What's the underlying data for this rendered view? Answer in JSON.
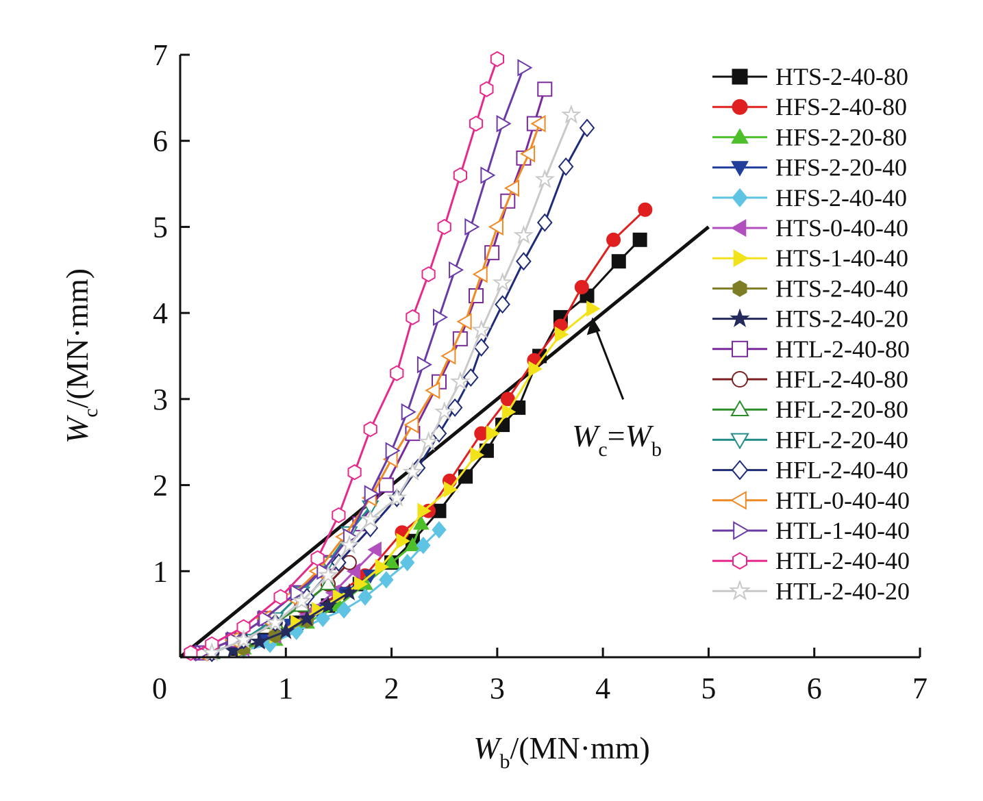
{
  "chart_data": {
    "type": "line",
    "title": "",
    "xlim": [
      0,
      7
    ],
    "ylim": [
      0,
      7
    ],
    "x_ticks": [
      "0",
      "1",
      "2",
      "3",
      "4",
      "5",
      "6",
      "7"
    ],
    "y_ticks": [
      "1",
      "2",
      "3",
      "4",
      "5",
      "6",
      "7"
    ],
    "xlabel": {
      "main": "W",
      "sub": "b",
      "unit": "/(MN·mm)"
    },
    "ylabel": {
      "main": "W",
      "sub": "c",
      "unit": "/(MN·mm)"
    },
    "grid": false,
    "legend_position": "right",
    "reference_line": {
      "points": [
        [
          0,
          0
        ],
        [
          5,
          5
        ]
      ],
      "color": "#111111",
      "label": {
        "main1": "W",
        "sub1": "c",
        "eq": "=",
        "main2": "W",
        "sub2": "b"
      },
      "arrow_target": [
        3.9,
        3.95
      ]
    },
    "series": [
      {
        "name": "HTS-2-40-80",
        "color": "#111111",
        "marker": "square",
        "filled": true,
        "points": [
          [
            0.55,
            0.1
          ],
          [
            0.8,
            0.2
          ],
          [
            1.1,
            0.4
          ],
          [
            1.4,
            0.6
          ],
          [
            1.7,
            0.85
          ],
          [
            2.0,
            1.1
          ],
          [
            2.2,
            1.35
          ],
          [
            2.45,
            1.7
          ],
          [
            2.7,
            2.1
          ],
          [
            2.9,
            2.4
          ],
          [
            3.05,
            2.7
          ],
          [
            3.2,
            2.9
          ],
          [
            3.4,
            3.5
          ],
          [
            3.6,
            3.95
          ],
          [
            3.85,
            4.2
          ],
          [
            4.15,
            4.6
          ],
          [
            4.35,
            4.85
          ]
        ]
      },
      {
        "name": "HFS-2-40-80",
        "color": "#e02020",
        "marker": "circle",
        "filled": true,
        "points": [
          [
            0.6,
            0.1
          ],
          [
            0.9,
            0.25
          ],
          [
            1.2,
            0.45
          ],
          [
            1.5,
            0.75
          ],
          [
            1.75,
            0.95
          ],
          [
            2.1,
            1.45
          ],
          [
            2.35,
            1.7
          ],
          [
            2.55,
            2.05
          ],
          [
            2.85,
            2.6
          ],
          [
            3.1,
            3.0
          ],
          [
            3.35,
            3.45
          ],
          [
            3.6,
            3.85
          ],
          [
            3.8,
            4.3
          ],
          [
            4.1,
            4.85
          ],
          [
            4.4,
            5.2
          ]
        ]
      },
      {
        "name": "HFS-2-20-80",
        "color": "#4cbf2a",
        "marker": "triangle-up",
        "filled": true,
        "points": [
          [
            0.6,
            0.1
          ],
          [
            0.9,
            0.2
          ],
          [
            1.2,
            0.4
          ],
          [
            1.5,
            0.6
          ],
          [
            1.75,
            0.85
          ],
          [
            2.0,
            1.1
          ],
          [
            2.2,
            1.3
          ],
          [
            2.28,
            1.55
          ]
        ]
      },
      {
        "name": "HFS-2-20-40",
        "color": "#1f3f9a",
        "marker": "triangle-down",
        "filled": true,
        "points": [
          [
            0.55,
            0.08
          ],
          [
            0.8,
            0.2
          ],
          [
            1.05,
            0.38
          ],
          [
            1.3,
            0.55
          ],
          [
            1.55,
            0.75
          ],
          [
            1.8,
            0.95
          ]
        ]
      },
      {
        "name": "HFS-2-40-40",
        "color": "#5fc3e4",
        "marker": "diamond",
        "filled": true,
        "points": [
          [
            0.6,
            0.08
          ],
          [
            0.85,
            0.15
          ],
          [
            1.1,
            0.3
          ],
          [
            1.35,
            0.45
          ],
          [
            1.55,
            0.55
          ],
          [
            1.75,
            0.7
          ],
          [
            1.95,
            0.9
          ],
          [
            2.15,
            1.1
          ],
          [
            2.3,
            1.3
          ],
          [
            2.45,
            1.48
          ]
        ]
      },
      {
        "name": "HTS-0-40-40",
        "color": "#b24fbf",
        "marker": "triangle-left",
        "filled": true,
        "points": [
          [
            0.6,
            0.1
          ],
          [
            0.9,
            0.25
          ],
          [
            1.2,
            0.5
          ],
          [
            1.45,
            0.75
          ],
          [
            1.65,
            1.0
          ],
          [
            1.85,
            1.25
          ]
        ]
      },
      {
        "name": "HTS-1-40-40",
        "color": "#f2e21a",
        "marker": "triangle-right",
        "filled": true,
        "points": [
          [
            0.6,
            0.1
          ],
          [
            0.9,
            0.25
          ],
          [
            1.1,
            0.4
          ],
          [
            1.3,
            0.55
          ],
          [
            1.5,
            0.7
          ],
          [
            1.7,
            0.85
          ],
          [
            1.9,
            1.05
          ],
          [
            2.1,
            1.35
          ],
          [
            2.3,
            1.7
          ],
          [
            2.55,
            1.95
          ],
          [
            2.8,
            2.35
          ],
          [
            2.95,
            2.6
          ],
          [
            3.1,
            2.85
          ],
          [
            3.35,
            3.35
          ],
          [
            3.6,
            3.75
          ],
          [
            3.9,
            4.05
          ]
        ]
      },
      {
        "name": "HTS-2-40-40",
        "color": "#7d7d26",
        "marker": "hexagon",
        "filled": true,
        "points": [
          [
            0.6,
            0.1
          ],
          [
            0.9,
            0.25
          ],
          [
            1.2,
            0.42
          ]
        ]
      },
      {
        "name": "HTS-2-40-20",
        "color": "#252a5c",
        "marker": "star",
        "filled": true,
        "points": [
          [
            0.5,
            0.08
          ],
          [
            0.75,
            0.18
          ],
          [
            1.0,
            0.3
          ],
          [
            1.2,
            0.45
          ],
          [
            1.4,
            0.6
          ],
          [
            1.6,
            0.75
          ]
        ]
      },
      {
        "name": "HTL-2-40-80",
        "color": "#7a2a9a",
        "marker": "square",
        "filled": false,
        "points": [
          [
            0.2,
            0.05
          ],
          [
            0.5,
            0.2
          ],
          [
            0.8,
            0.45
          ],
          [
            1.1,
            0.75
          ],
          [
            1.4,
            1.1
          ],
          [
            1.7,
            1.55
          ],
          [
            1.95,
            2.0
          ],
          [
            2.2,
            2.6
          ],
          [
            2.45,
            3.2
          ],
          [
            2.65,
            3.7
          ],
          [
            2.8,
            4.2
          ],
          [
            2.95,
            4.7
          ],
          [
            3.1,
            5.3
          ],
          [
            3.25,
            5.8
          ],
          [
            3.35,
            6.2
          ],
          [
            3.45,
            6.6
          ]
        ]
      },
      {
        "name": "HFL-2-40-80",
        "color": "#7a2020",
        "marker": "circle",
        "filled": false,
        "points": [
          [
            0.3,
            0.05
          ],
          [
            0.6,
            0.2
          ],
          [
            0.9,
            0.4
          ],
          [
            1.15,
            0.6
          ],
          [
            1.4,
            0.85
          ],
          [
            1.6,
            1.1
          ]
        ]
      },
      {
        "name": "HFL-2-20-80",
        "color": "#2c8c2c",
        "marker": "triangle-up",
        "filled": false,
        "points": [
          [
            0.3,
            0.05
          ],
          [
            0.6,
            0.2
          ],
          [
            0.9,
            0.4
          ],
          [
            1.15,
            0.6
          ],
          [
            1.4,
            0.85
          ]
        ]
      },
      {
        "name": "HFL-2-20-40",
        "color": "#258c8c",
        "marker": "triangle-down",
        "filled": false,
        "points": [
          [
            0.3,
            0.05
          ],
          [
            0.6,
            0.2
          ],
          [
            0.9,
            0.45
          ],
          [
            1.15,
            0.75
          ],
          [
            1.4,
            1.1
          ],
          [
            1.6,
            1.45
          ],
          [
            1.8,
            1.75
          ]
        ]
      },
      {
        "name": "HFL-2-40-40",
        "color": "#1f2a78",
        "marker": "diamond",
        "filled": false,
        "points": [
          [
            0.3,
            0.05
          ],
          [
            0.6,
            0.2
          ],
          [
            0.9,
            0.4
          ],
          [
            1.2,
            0.7
          ],
          [
            1.5,
            1.1
          ],
          [
            1.8,
            1.5
          ],
          [
            2.05,
            1.85
          ],
          [
            2.25,
            2.2
          ],
          [
            2.45,
            2.6
          ],
          [
            2.6,
            2.9
          ],
          [
            2.75,
            3.25
          ],
          [
            2.85,
            3.6
          ],
          [
            3.05,
            4.1
          ],
          [
            3.25,
            4.6
          ],
          [
            3.45,
            5.05
          ],
          [
            3.65,
            5.7
          ],
          [
            3.85,
            6.15
          ]
        ]
      },
      {
        "name": "HTL-0-40-40",
        "color": "#f08a24",
        "marker": "triangle-left",
        "filled": false,
        "points": [
          [
            0.2,
            0.05
          ],
          [
            0.5,
            0.2
          ],
          [
            0.8,
            0.45
          ],
          [
            1.05,
            0.7
          ],
          [
            1.3,
            1.0
          ],
          [
            1.55,
            1.4
          ],
          [
            1.8,
            1.85
          ],
          [
            2.0,
            2.3
          ],
          [
            2.2,
            2.7
          ],
          [
            2.4,
            3.1
          ],
          [
            2.55,
            3.5
          ],
          [
            2.7,
            3.9
          ],
          [
            2.85,
            4.45
          ],
          [
            3.0,
            5.0
          ],
          [
            3.15,
            5.45
          ],
          [
            3.3,
            5.85
          ],
          [
            3.4,
            6.2
          ]
        ]
      },
      {
        "name": "HTL-1-40-40",
        "color": "#6a3aa8",
        "marker": "triangle-right",
        "filled": false,
        "points": [
          [
            0.2,
            0.05
          ],
          [
            0.5,
            0.2
          ],
          [
            0.8,
            0.45
          ],
          [
            1.1,
            0.75
          ],
          [
            1.35,
            1.0
          ],
          [
            1.6,
            1.4
          ],
          [
            1.8,
            1.9
          ],
          [
            2.0,
            2.4
          ],
          [
            2.15,
            2.85
          ],
          [
            2.3,
            3.4
          ],
          [
            2.45,
            3.95
          ],
          [
            2.6,
            4.5
          ],
          [
            2.75,
            5.0
          ],
          [
            2.9,
            5.6
          ],
          [
            3.05,
            6.2
          ],
          [
            3.25,
            6.85
          ]
        ]
      },
      {
        "name": "HTL-2-40-40",
        "color": "#e62a8c",
        "marker": "hexagon",
        "filled": false,
        "points": [
          [
            0.1,
            0.05
          ],
          [
            0.3,
            0.15
          ],
          [
            0.6,
            0.35
          ],
          [
            0.95,
            0.7
          ],
          [
            1.3,
            1.15
          ],
          [
            1.5,
            1.65
          ],
          [
            1.65,
            2.15
          ],
          [
            1.8,
            2.65
          ],
          [
            2.05,
            3.3
          ],
          [
            2.2,
            3.95
          ],
          [
            2.35,
            4.45
          ],
          [
            2.5,
            5.0
          ],
          [
            2.65,
            5.6
          ],
          [
            2.8,
            6.2
          ],
          [
            2.9,
            6.6
          ],
          [
            3.0,
            6.95
          ]
        ]
      },
      {
        "name": "HTL-2-40-20",
        "color": "#c9c9c9",
        "marker": "star",
        "filled": false,
        "points": [
          [
            0.3,
            0.05
          ],
          [
            0.6,
            0.2
          ],
          [
            0.9,
            0.4
          ],
          [
            1.15,
            0.65
          ],
          [
            1.4,
            0.95
          ],
          [
            1.6,
            1.3
          ],
          [
            1.8,
            1.6
          ],
          [
            2.05,
            1.85
          ],
          [
            2.2,
            2.15
          ],
          [
            2.35,
            2.5
          ],
          [
            2.5,
            2.85
          ],
          [
            2.65,
            3.2
          ],
          [
            2.85,
            3.8
          ],
          [
            3.05,
            4.35
          ],
          [
            3.25,
            4.9
          ],
          [
            3.45,
            5.55
          ],
          [
            3.7,
            6.3
          ]
        ]
      }
    ]
  }
}
